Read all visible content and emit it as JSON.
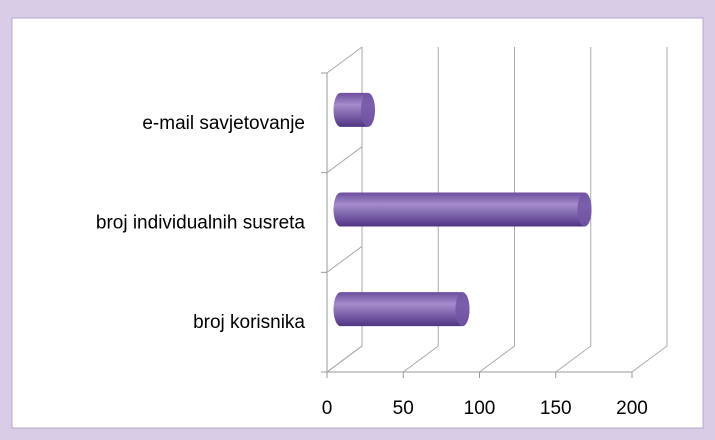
{
  "chart_data": {
    "type": "bar",
    "orientation": "horizontal",
    "categories": [
      "broj korisnika",
      "broj individualnih susreta",
      "e-mail savjetovanje"
    ],
    "values": [
      80,
      160,
      18
    ],
    "color": "#7357a6",
    "xlim": [
      0,
      200
    ],
    "xticks": [
      0,
      50,
      100,
      150,
      200
    ],
    "grid": true
  }
}
